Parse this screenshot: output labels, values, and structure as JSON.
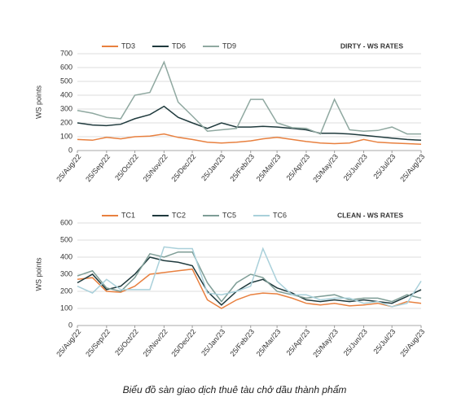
{
  "chart_data": [
    {
      "type": "line",
      "title": "DIRTY - WS RATES",
      "ylabel": "WS points",
      "x": [
        "25/Aug/22",
        "10/Sep/22",
        "25/Sep/22",
        "10/Oct/22",
        "25/Oct/22",
        "10/Nov/22",
        "25/Nov/22",
        "10/Dec/22",
        "25/Dec/22",
        "10/Jan/23",
        "25/Jan/23",
        "10/Feb/23",
        "25/Feb/23",
        "10/Mar/23",
        "25/Mar/23",
        "10/Apr/23",
        "25/Apr/23",
        "10/May/23",
        "25/May/23",
        "10/Jun/23",
        "25/Jun/23",
        "10/Jul/23",
        "25/Jul/23",
        "10/Aug/23",
        "25/Aug/23"
      ],
      "xlim": [
        "25/Aug/22",
        "25/Aug/23"
      ],
      "xticks": [
        "25/Aug/22",
        "25/Sep/22",
        "25/Oct/22",
        "25/Nov/22",
        "25/Dec/22",
        "25/Jan/23",
        "25/Feb/23",
        "25/Mar/23",
        "25/Apr/23",
        "25/May/23",
        "25/Jun/23",
        "25/Jul/23",
        "25/Aug/23"
      ],
      "ylim": [
        0,
        700
      ],
      "yticks": [
        0,
        100,
        200,
        300,
        400,
        500,
        600,
        700
      ],
      "grid": true,
      "series": [
        {
          "name": "TD3",
          "color": "#e8803f",
          "values": [
            80,
            75,
            95,
            85,
            100,
            105,
            120,
            95,
            80,
            60,
            55,
            60,
            70,
            85,
            95,
            80,
            65,
            55,
            50,
            55,
            80,
            60,
            55,
            50,
            45
          ]
        },
        {
          "name": "TD6",
          "color": "#1f3a3d",
          "values": [
            200,
            185,
            180,
            190,
            230,
            260,
            320,
            240,
            200,
            160,
            200,
            170,
            170,
            175,
            170,
            160,
            150,
            125,
            125,
            120,
            110,
            100,
            90,
            80,
            75
          ]
        },
        {
          "name": "TD9",
          "color": "#8fa8a0",
          "values": [
            290,
            270,
            240,
            230,
            400,
            420,
            640,
            350,
            250,
            140,
            150,
            160,
            370,
            370,
            200,
            165,
            160,
            120,
            370,
            150,
            140,
            145,
            170,
            120,
            120
          ]
        }
      ]
    },
    {
      "type": "line",
      "title": "CLEAN - WS RATES",
      "ylabel": "WS points",
      "x": [
        "25/Aug/22",
        "10/Sep/22",
        "25/Sep/22",
        "10/Oct/22",
        "25/Oct/22",
        "10/Nov/22",
        "25/Nov/22",
        "10/Dec/22",
        "25/Dec/22",
        "10/Jan/23",
        "25/Jan/23",
        "10/Feb/23",
        "25/Feb/23",
        "10/Mar/23",
        "25/Mar/23",
        "10/Apr/23",
        "25/Apr/23",
        "10/May/23",
        "25/May/23",
        "10/Jun/23",
        "25/Jun/23",
        "10/Jul/23",
        "25/Jul/23",
        "10/Aug/23",
        "25/Aug/23"
      ],
      "xlim": [
        "25/Aug/22",
        "25/Aug/23"
      ],
      "xticks": [
        "25/Aug/22",
        "25/Sep/22",
        "25/Oct/22",
        "25/Nov/22",
        "25/Dec/22",
        "25/Jan/23",
        "25/Feb/23",
        "25/Mar/23",
        "25/Apr/23",
        "25/May/23",
        "25/Jun/23",
        "25/Jul/23",
        "25/Aug/23"
      ],
      "ylim": [
        0,
        600
      ],
      "yticks": [
        0,
        100,
        200,
        300,
        400,
        500,
        600
      ],
      "grid": true,
      "series": [
        {
          "name": "TC1",
          "color": "#e8803f",
          "values": [
            270,
            280,
            200,
            195,
            230,
            300,
            310,
            320,
            330,
            150,
            100,
            150,
            180,
            190,
            185,
            160,
            130,
            120,
            130,
            115,
            120,
            130,
            110,
            140,
            130
          ]
        },
        {
          "name": "TC2",
          "color": "#1f3a3d",
          "values": [
            250,
            300,
            210,
            230,
            300,
            400,
            380,
            370,
            350,
            200,
            120,
            200,
            250,
            270,
            220,
            190,
            150,
            140,
            150,
            140,
            150,
            140,
            130,
            170,
            210
          ]
        },
        {
          "name": "TC5",
          "color": "#7e9d96",
          "values": [
            290,
            320,
            220,
            200,
            280,
            420,
            400,
            430,
            430,
            250,
            140,
            250,
            300,
            280,
            200,
            180,
            160,
            170,
            180,
            150,
            160,
            160,
            140,
            180,
            160
          ]
        },
        {
          "name": "TC6",
          "color": "#a9d0da",
          "values": [
            230,
            190,
            270,
            210,
            210,
            210,
            460,
            450,
            450,
            190,
            180,
            200,
            230,
            450,
            260,
            180,
            180,
            150,
            160,
            160,
            130,
            140,
            110,
            130,
            260
          ]
        }
      ]
    }
  ],
  "caption": "Biểu đồ sàn giao dịch thuê tàu chở dầu thành phẩm"
}
